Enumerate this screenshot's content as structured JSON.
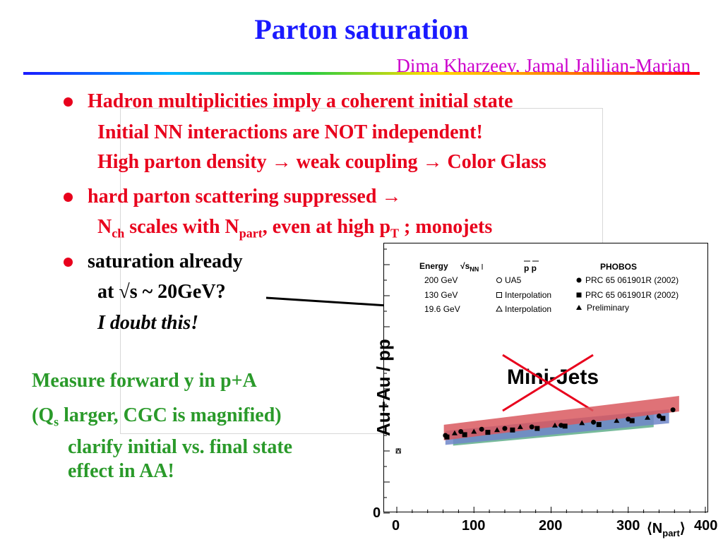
{
  "slide": {
    "title": "Parton saturation",
    "authors": "Dima Kharzeev, Jamal Jalilian-Marian"
  },
  "bullets": [
    {
      "text": "Hadron multiplicities imply a coherent initial state",
      "sub1": "Initial NN interactions are NOT independent!",
      "sub2_a": "High parton density ",
      "arrow": "→",
      "sub2_b": " weak coupling ",
      "sub2_c": " Color Glass"
    },
    {
      "text": "hard parton scattering suppressed ",
      "sub1_a": "N",
      "sub1_ch": "ch",
      "sub1_b": " scales with N",
      "sub1_part": "part",
      "sub1_c": ", even at high p",
      "sub1_T": "T",
      "sub1_d": " ; monojets"
    },
    {
      "text": "saturation already",
      "sub1": "at √s ~ 20GeV?",
      "sub2": "I doubt this!"
    }
  ],
  "green_notes": {
    "line1": "Measure forward y in p+A",
    "line2_a": "(Q",
    "line2_s": "s",
    "line2_b": " larger, CGC is magnified)",
    "line3": "clarify initial vs. final state",
    "line4": "effect in AA!"
  },
  "colors": {
    "title": "#1a1aff",
    "authors": "#cc00cc",
    "bullet_text": "#e8001c",
    "green_text": "#2a9a2a",
    "band_red": "#d9595f",
    "band_blue": "#6f86c9",
    "band_green": "#5fae8a"
  },
  "chart_data": {
    "type": "scatter",
    "ylabel": "Au+Au / pp",
    "xlabel_a": "⟨N",
    "xlabel_sub": "part",
    "xlabel_b": "⟩",
    "xlim": [
      0,
      400
    ],
    "x_ticks": [
      "0",
      "100",
      "200",
      "300",
      "400"
    ],
    "y_ticks": [
      "0"
    ],
    "annotation": "Mini-Jets",
    "legend": {
      "energy_header": "Energy",
      "sqrt_header": "√s",
      "sqrt_sub": "NN",
      "pp_header": "p p",
      "phobos_header": "PHOBOS",
      "rows": [
        {
          "energy": "200 GeV",
          "pp": "UA5",
          "pp_marker": "open-circle",
          "phobos": "PRC 65 061901R (2002)",
          "phobos_marker": "filled-circle"
        },
        {
          "energy": "130 GeV",
          "pp": "Interpolation",
          "pp_marker": "open-square",
          "phobos": "PRC 65 061901R (2002)",
          "phobos_marker": "filled-square"
        },
        {
          "energy": "19.6 GeV",
          "pp": "Interpolation",
          "pp_marker": "open-triangle",
          "phobos": "Preliminary",
          "phobos_marker": "filled-triangle"
        }
      ]
    },
    "series": [
      {
        "name": "200 GeV",
        "marker": "circle",
        "x": [
          63,
          83,
          110,
          140,
          175,
          213,
          255,
          300,
          340,
          358
        ],
        "y": [
          1.0,
          1.05,
          1.08,
          1.09,
          1.11,
          1.13,
          1.17,
          1.21,
          1.25,
          1.33
        ]
      },
      {
        "name": "130 GeV",
        "marker": "square",
        "x": [
          65,
          88,
          118,
          150,
          182,
          218,
          262,
          305,
          345
        ],
        "y": [
          0.98,
          1.01,
          1.04,
          1.07,
          1.09,
          1.12,
          1.14,
          1.19,
          1.22
        ]
      },
      {
        "name": "19.6 GeV",
        "marker": "triangle",
        "x": [
          75,
          100,
          130,
          160,
          205,
          240,
          285,
          325
        ],
        "y": [
          1.03,
          1.05,
          1.07,
          1.11,
          1.13,
          1.16,
          1.19,
          1.23
        ]
      }
    ]
  }
}
